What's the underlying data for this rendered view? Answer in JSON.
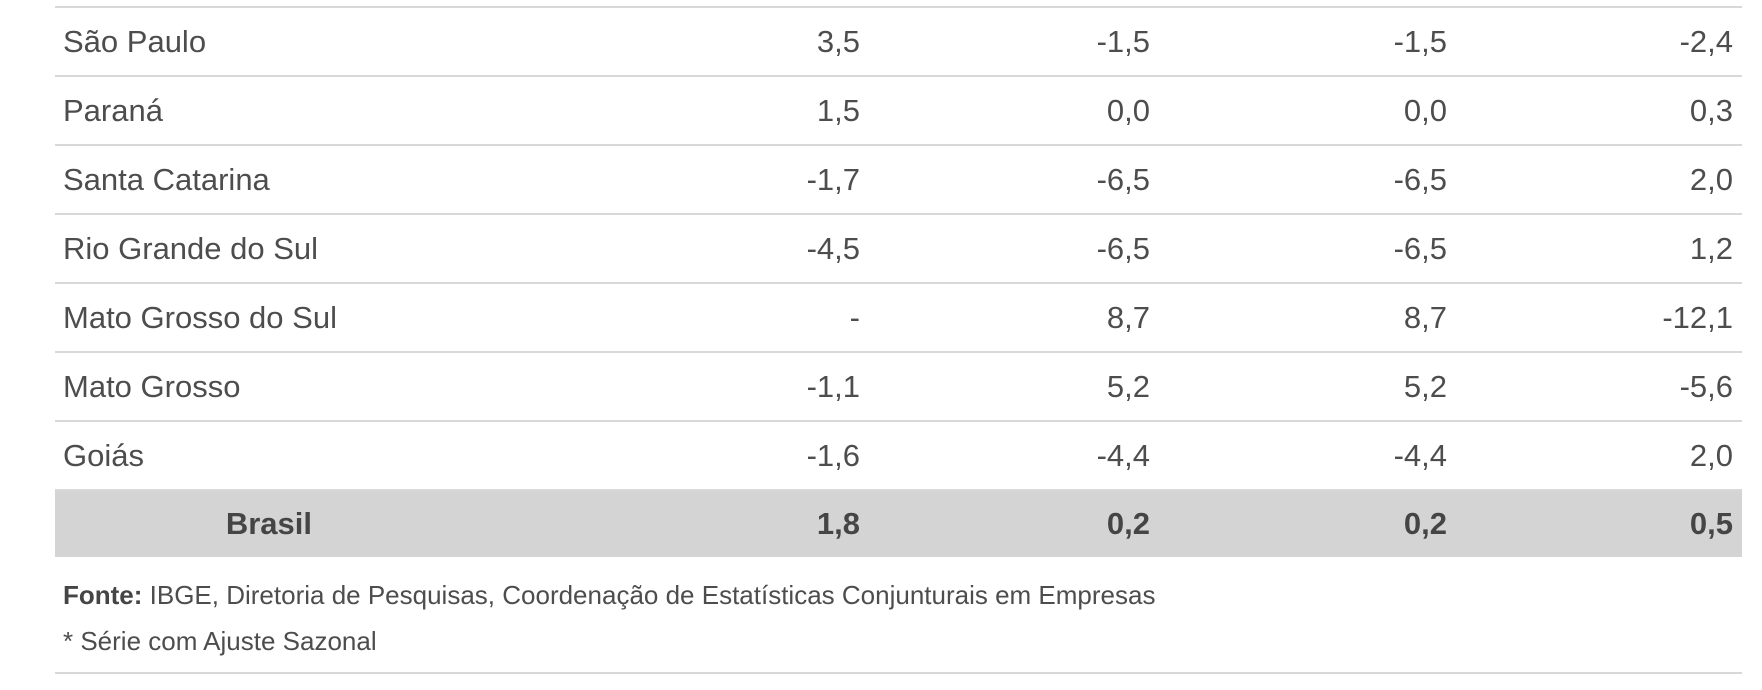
{
  "table": {
    "rows": [
      {
        "label": "São Paulo",
        "values": [
          "3,5",
          "-1,5",
          "-1,5",
          "-2,4"
        ]
      },
      {
        "label": "Paraná",
        "values": [
          "1,5",
          "0,0",
          "0,0",
          "0,3"
        ]
      },
      {
        "label": "Santa Catarina",
        "values": [
          "-1,7",
          "-6,5",
          "-6,5",
          "2,0"
        ]
      },
      {
        "label": "Rio Grande do Sul",
        "values": [
          "-4,5",
          "-6,5",
          "-6,5",
          "1,2"
        ]
      },
      {
        "label": "Mato Grosso do Sul",
        "values": [
          "-",
          "8,7",
          "8,7",
          "-12,1"
        ]
      },
      {
        "label": "Mato Grosso",
        "values": [
          "-1,1",
          "5,2",
          "5,2",
          "-5,6"
        ]
      },
      {
        "label": "Goiás",
        "values": [
          "-1,6",
          "-4,4",
          "-4,4",
          "2,0"
        ]
      }
    ],
    "total_row": {
      "label": "Brasil",
      "values": [
        "1,8",
        "0,2",
        "0,2",
        "0,5"
      ]
    }
  },
  "footer": {
    "source_label": "Fonte:",
    "source_text": " IBGE, Diretoria de Pesquisas, Coordenação de Estatísticas Conjunturais em Empresas",
    "note": "* Série com Ajuste Sazonal"
  },
  "colors": {
    "text": "#4d4d4d",
    "total_row_background": "#d4d4d4",
    "row_border": "#d8d8d8",
    "background": "#ffffff"
  },
  "chart_data": {
    "type": "table",
    "column_headers_visible": false,
    "decimal_separator": ",",
    "row_labels": [
      "São Paulo",
      "Paraná",
      "Santa Catarina",
      "Rio Grande do Sul",
      "Mato Grosso do Sul",
      "Mato Grosso",
      "Goiás",
      "Brasil"
    ],
    "values": [
      [
        3.5,
        -1.5,
        -1.5,
        -2.4
      ],
      [
        1.5,
        0.0,
        0.0,
        0.3
      ],
      [
        -1.7,
        -6.5,
        -6.5,
        2.0
      ],
      [
        -4.5,
        -6.5,
        -6.5,
        1.2
      ],
      [
        null,
        8.7,
        8.7,
        -12.1
      ],
      [
        -1.1,
        5.2,
        5.2,
        -5.6
      ],
      [
        -1.6,
        -4.4,
        -4.4,
        2.0
      ],
      [
        1.8,
        0.2,
        0.2,
        0.5
      ]
    ],
    "total_row_label": "Brasil",
    "notes": [
      "Fonte: IBGE, Diretoria de Pesquisas, Coordenação de Estatísticas Conjunturais em Empresas",
      "* Série com Ajuste Sazonal"
    ]
  }
}
